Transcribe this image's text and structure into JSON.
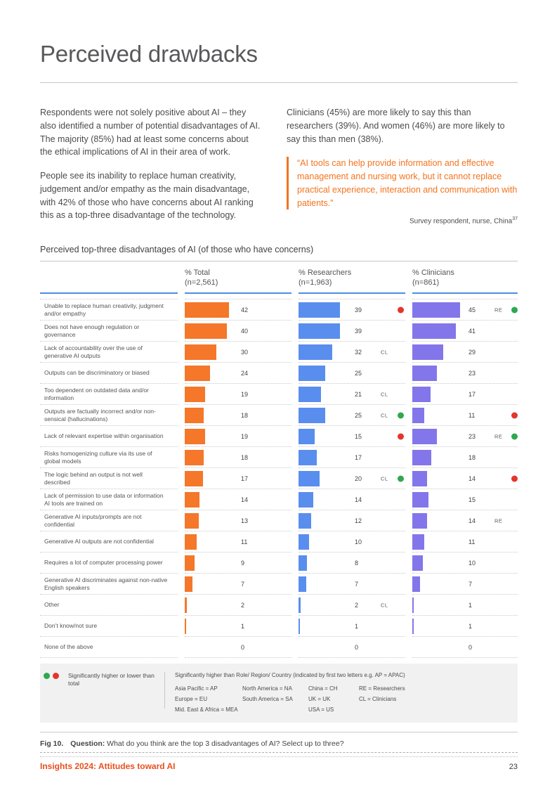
{
  "page_title": "Perceived drawbacks",
  "intro": {
    "left_para1": "Respondents were not solely positive about AI – they also identified a number of potential disadvantages of AI. The majority (85%) had at least some concerns about the ethical implications of AI in their area of work.",
    "left_para2": "People see its inability to replace human creativity, judgement and/or empathy as the main disadvantage, with 42% of those who have concerns about AI ranking this as a top-three disadvantage of the technology.",
    "right_para": "Clinicians (45%) are more likely to say this than researchers (39%). And women (46%) are more likely to say this than men (38%).",
    "quote": "“AI tools can help provide information and effective management and nursing work, but it cannot replace practical experience, interaction and communication with patients.”",
    "attribution": "Survey respondent, nurse, China",
    "attribution_superscript": "37"
  },
  "chart_data": {
    "type": "bar",
    "title": "Perceived top-three disadvantages of AI (of those who have concerns)",
    "unit": "percent",
    "axis_max": 100,
    "columns": [
      {
        "key": "total",
        "label": "% Total",
        "n": "(n=2,561)",
        "color": "#F4772A"
      },
      {
        "key": "researchers",
        "label": "% Researchers",
        "n": "(n=1,963)",
        "color": "#5A8EEE"
      },
      {
        "key": "clinicians",
        "label": "% Clinicians",
        "n": "(n=861)",
        "color": "#8376EA"
      }
    ],
    "rows": [
      {
        "label": "Unable to replace human creativity, judgment and/or empathy",
        "total": 42,
        "researchers": 39,
        "clinicians": 45,
        "sig": {
          "researchers": {
            "dot": "red"
          },
          "clinicians": {
            "letters": "RE",
            "dot": "green"
          }
        }
      },
      {
        "label": "Does not have enough regulation or governance",
        "total": 40,
        "researchers": 39,
        "clinicians": 41
      },
      {
        "label": "Lack of accountability over the use of generative AI outputs",
        "total": 30,
        "researchers": 32,
        "clinicians": 29,
        "sig": {
          "researchers": {
            "letters": "CL"
          }
        }
      },
      {
        "label": "Outputs can be discriminatory or biased",
        "total": 24,
        "researchers": 25,
        "clinicians": 23
      },
      {
        "label": "Too dependent on outdated data and/or information",
        "total": 19,
        "researchers": 21,
        "clinicians": 17,
        "sig": {
          "researchers": {
            "letters": "CL"
          }
        }
      },
      {
        "label": "Outputs are factually incorrect and/or non-sensical (hallucinations)",
        "total": 18,
        "researchers": 25,
        "clinicians": 11,
        "sig": {
          "researchers": {
            "letters": "CL",
            "dot": "green"
          },
          "clinicians": {
            "dot": "red"
          }
        }
      },
      {
        "label": "Lack of relevant expertise within organisation",
        "total": 19,
        "researchers": 15,
        "clinicians": 23,
        "sig": {
          "researchers": {
            "dot": "red"
          },
          "clinicians": {
            "letters": "RE",
            "dot": "green"
          }
        }
      },
      {
        "label": "Risks homogenizing culture via its use of global models",
        "total": 18,
        "researchers": 17,
        "clinicians": 18
      },
      {
        "label": "The logic behind an output is not well described",
        "total": 17,
        "researchers": 20,
        "clinicians": 14,
        "sig": {
          "researchers": {
            "letters": "CL",
            "dot": "green"
          },
          "clinicians": {
            "dot": "red"
          }
        }
      },
      {
        "label": "Lack of permission to use data or information AI tools are trained on",
        "total": 14,
        "researchers": 14,
        "clinicians": 15
      },
      {
        "label": "Generative AI inputs/prompts are not confidential",
        "total": 13,
        "researchers": 12,
        "clinicians": 14,
        "sig": {
          "clinicians": {
            "letters": "RE"
          }
        }
      },
      {
        "label": "Generative AI outputs are not confidential",
        "total": 11,
        "researchers": 10,
        "clinicians": 11
      },
      {
        "label": "Requires a lot of computer processing power",
        "total": 9,
        "researchers": 8,
        "clinicians": 10
      },
      {
        "label": "Generative AI discriminates against non-native English speakers",
        "total": 7,
        "researchers": 7,
        "clinicians": 7
      },
      {
        "label": "Other",
        "total": 2,
        "researchers": 2,
        "clinicians": 1,
        "sig": {
          "researchers": {
            "letters": "CL"
          }
        }
      },
      {
        "label": "Don’t know/not sure",
        "total": 1,
        "researchers": 1,
        "clinicians": 1
      },
      {
        "label": "None of the above",
        "total": 0,
        "researchers": 0,
        "clinicians": 0
      }
    ]
  },
  "legend": {
    "dots_label": "Significantly higher or lower than total",
    "heading": "Significantly higher than Role/ Region/ Country (indicated by first two letters e.g. AP = APAC)",
    "columns": [
      [
        "Asia Pacific = AP",
        "Europe = EU",
        "Mid. East & Africa = MEA"
      ],
      [
        "North America  = NA",
        "South America = SA"
      ],
      [
        "China = CH",
        "UK = UK",
        "USA = US"
      ],
      [
        "RE = Researchers",
        "CL = Clinicians"
      ]
    ]
  },
  "caption": {
    "fig_label": "Fig 10.",
    "question_label": "Question:",
    "question_text": " What do you think are the top 3 disadvantages of AI? Select up to three?"
  },
  "footer": {
    "left": "Insights 2024: Attitudes toward AI",
    "page_number": "23"
  },
  "colors": {
    "accent_orange": "#F4772A",
    "bar_blue": "#5A8EEE",
    "bar_purple": "#8376EA",
    "dot_green": "#2FA84F",
    "dot_red": "#E4352C",
    "header_underline_blue": "#4C8FE2",
    "quote_orange": "#F4731E",
    "footer_orange": "#E8501E"
  }
}
